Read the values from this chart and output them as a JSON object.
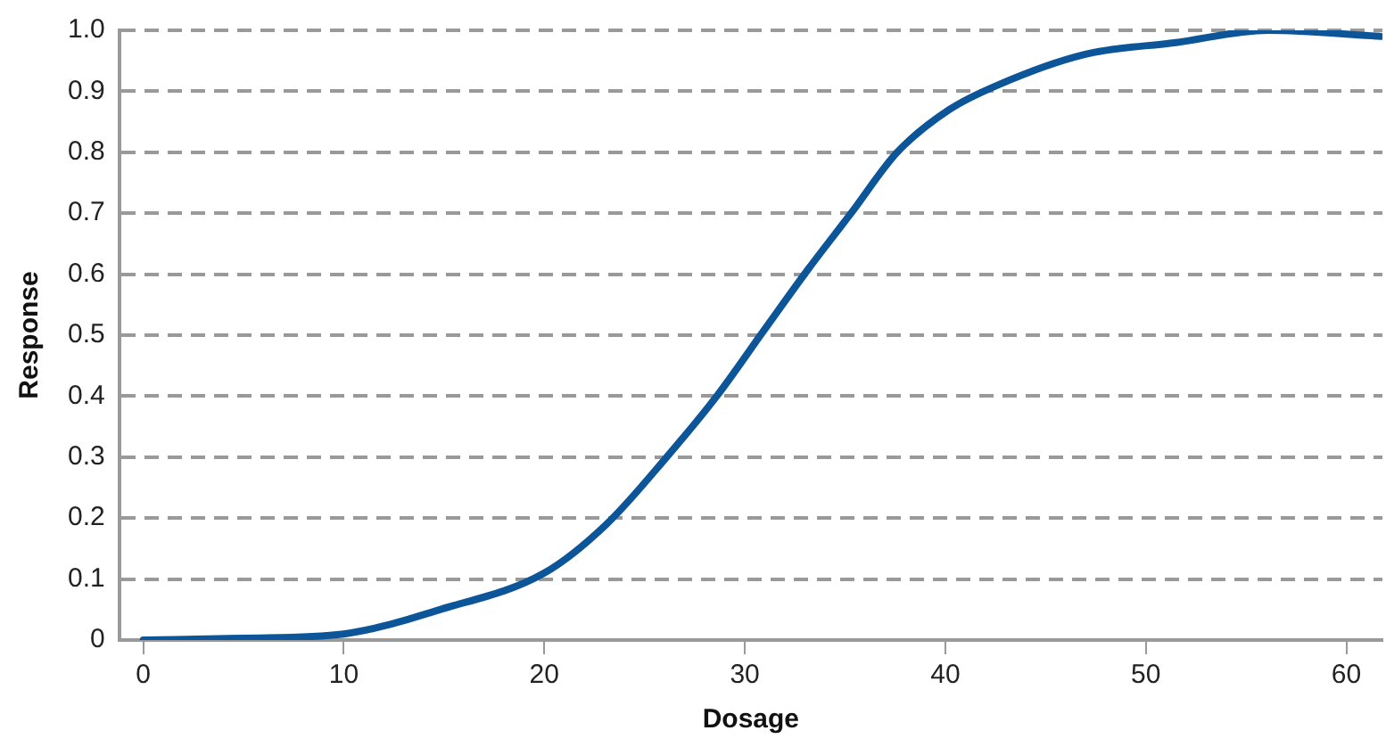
{
  "chart_data": {
    "type": "line",
    "xlabel": "Dosage",
    "ylabel": "Response",
    "series": [
      {
        "color": "#0d5599",
        "x": [
          0,
          5,
          10,
          14.8,
          20,
          23.1,
          26.1,
          28.6,
          31,
          33.2,
          35.3,
          37.6,
          40.2,
          42.6,
          46.9,
          51.5,
          56.1,
          61.7
        ],
        "values": [
          0,
          0.003,
          0.01,
          0.05,
          0.11,
          0.19,
          0.3,
          0.4,
          0.51,
          0.61,
          0.7,
          0.8,
          0.87,
          0.91,
          0.96,
          0.98,
          1.0,
          0.99
        ]
      }
    ],
    "xlim": [
      -1.2,
      61.8
    ],
    "xticks": [
      0,
      10,
      20,
      30,
      40,
      50,
      60
    ],
    "ylim": [
      0,
      1
    ],
    "yticks": [
      0,
      0.1,
      0.2,
      0.3,
      0.4,
      0.5,
      0.6,
      0.7,
      0.8,
      0.9,
      {
        "value": 1,
        "label": "1.0"
      }
    ],
    "grid": "y",
    "line_style": "solid",
    "marker": "none",
    "legend": false
  }
}
